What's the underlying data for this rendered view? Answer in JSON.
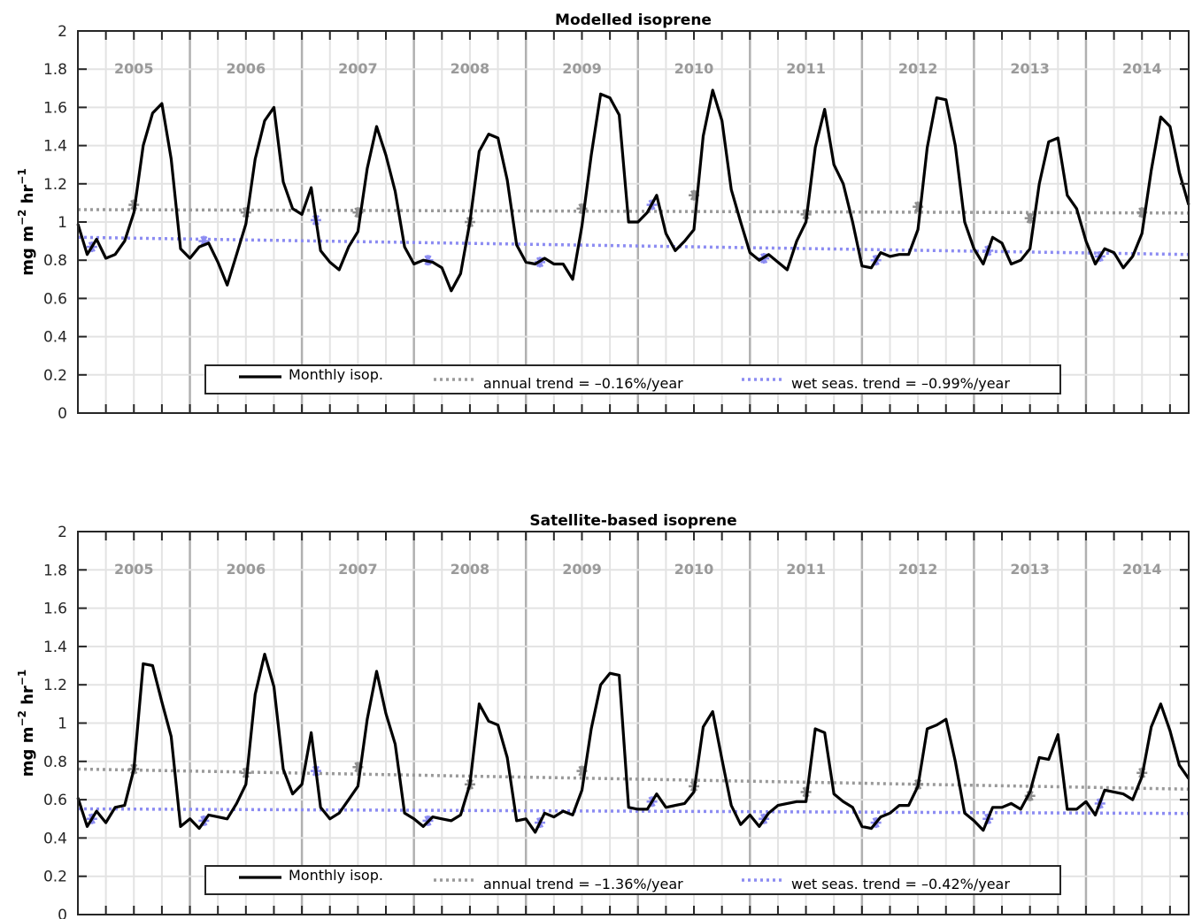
{
  "chart_data": [
    {
      "type": "line",
      "title": "Modelled isoprene",
      "ylabel": "mg m",
      "ylabel_sup1": "−2",
      "ylabel_mid": " hr",
      "ylabel_sup2": "−1",
      "ylim": [
        0,
        2
      ],
      "yticks": [
        "0",
        "0.2",
        "0.4",
        "0.6",
        "0.8",
        "1",
        "1.2",
        "1.4",
        "1.6",
        "1.8",
        "2"
      ],
      "xlim": [
        2005.0,
        2014.917
      ],
      "years": [
        "2005",
        "2006",
        "2007",
        "2008",
        "2009",
        "2010",
        "2011",
        "2012",
        "2013",
        "2014"
      ],
      "grid": true,
      "legend_position": "bottom-center",
      "series": [
        {
          "name": "Monthly isop.",
          "color": "#000000",
          "style": "solid",
          "x": [
            2005.0,
            2005.083,
            2005.167,
            2005.25,
            2005.333,
            2005.417,
            2005.5,
            2005.583,
            2005.667,
            2005.75,
            2005.833,
            2005.917,
            2006.0,
            2006.083,
            2006.167,
            2006.25,
            2006.333,
            2006.417,
            2006.5,
            2006.583,
            2006.667,
            2006.75,
            2006.833,
            2006.917,
            2007.0,
            2007.083,
            2007.167,
            2007.25,
            2007.333,
            2007.417,
            2007.5,
            2007.583,
            2007.667,
            2007.75,
            2007.833,
            2007.917,
            2008.0,
            2008.083,
            2008.167,
            2008.25,
            2008.333,
            2008.417,
            2008.5,
            2008.583,
            2008.667,
            2008.75,
            2008.833,
            2008.917,
            2009.0,
            2009.083,
            2009.167,
            2009.25,
            2009.333,
            2009.417,
            2009.5,
            2009.583,
            2009.667,
            2009.75,
            2009.833,
            2009.917,
            2010.0,
            2010.083,
            2010.167,
            2010.25,
            2010.333,
            2010.417,
            2010.5,
            2010.583,
            2010.667,
            2010.75,
            2010.833,
            2010.917,
            2011.0,
            2011.083,
            2011.167,
            2011.25,
            2011.333,
            2011.417,
            2011.5,
            2011.583,
            2011.667,
            2011.75,
            2011.833,
            2011.917,
            2012.0,
            2012.083,
            2012.167,
            2012.25,
            2012.333,
            2012.417,
            2012.5,
            2012.583,
            2012.667,
            2012.75,
            2012.833,
            2012.917,
            2013.0,
            2013.083,
            2013.167,
            2013.25,
            2013.333,
            2013.417,
            2013.5,
            2013.583,
            2013.667,
            2013.75,
            2013.833,
            2013.917,
            2014.0,
            2014.083,
            2014.167,
            2014.25,
            2014.333,
            2014.417,
            2014.5,
            2014.583,
            2014.667,
            2014.75,
            2014.833,
            2014.917
          ],
          "values": [
            0.99,
            0.83,
            0.91,
            0.81,
            0.83,
            0.9,
            1.05,
            1.4,
            1.57,
            1.62,
            1.33,
            0.86,
            0.81,
            0.87,
            0.89,
            0.79,
            0.67,
            0.83,
            0.99,
            1.33,
            1.53,
            1.6,
            1.21,
            1.07,
            1.04,
            1.18,
            0.85,
            0.79,
            0.75,
            0.87,
            0.95,
            1.28,
            1.5,
            1.35,
            1.16,
            0.87,
            0.78,
            0.8,
            0.79,
            0.76,
            0.64,
            0.73,
            1.0,
            1.37,
            1.46,
            1.44,
            1.22,
            0.88,
            0.79,
            0.78,
            0.81,
            0.78,
            0.78,
            0.7,
            0.98,
            1.35,
            1.67,
            1.65,
            1.56,
            1.0,
            1.0,
            1.05,
            1.14,
            0.94,
            0.85,
            0.9,
            0.96,
            1.45,
            1.69,
            1.53,
            1.17,
            1.0,
            0.84,
            0.8,
            0.83,
            0.79,
            0.75,
            0.9,
            1.0,
            1.39,
            1.59,
            1.3,
            1.2,
            1.0,
            0.77,
            0.76,
            0.84,
            0.82,
            0.83,
            0.83,
            0.96,
            1.39,
            1.65,
            1.64,
            1.4,
            1.0,
            0.86,
            0.78,
            0.92,
            0.89,
            0.78,
            0.8,
            0.86,
            1.2,
            1.42,
            1.44,
            1.14,
            1.07,
            0.9,
            0.78,
            0.86,
            0.84,
            0.76,
            0.82,
            0.94,
            1.27,
            1.55,
            1.5,
            1.26,
            1.09
          ]
        },
        {
          "name": "annual trend = –0.16%/year",
          "color": "#9a9a9a",
          "style": "dotted",
          "x": [
            2005.0,
            2014.917
          ],
          "values": [
            1.065,
            1.047
          ]
        },
        {
          "name": "wet seas. trend = –0.99%/year",
          "color": "#8c8cf2",
          "style": "dotted",
          "x": [
            2005.0,
            2014.917
          ],
          "values": [
            0.92,
            0.83
          ]
        }
      ],
      "annual_markers": {
        "color": "#8f8f8f",
        "x": [
          2005.5,
          2006.5,
          2007.5,
          2008.5,
          2009.5,
          2010.5,
          2011.5,
          2012.5,
          2013.5,
          2014.5
        ],
        "values": [
          1.09,
          1.05,
          1.05,
          1.0,
          1.07,
          1.14,
          1.04,
          1.08,
          1.02,
          1.05
        ]
      },
      "wet_markers": {
        "color": "#8c8cf2",
        "x": [
          2005.125,
          2006.125,
          2007.125,
          2008.125,
          2009.125,
          2010.125,
          2011.125,
          2012.125,
          2013.125,
          2014.125
        ],
        "values": [
          0.87,
          0.9,
          1.01,
          0.8,
          0.79,
          1.09,
          0.81,
          0.8,
          0.85,
          0.82
        ]
      }
    },
    {
      "type": "line",
      "title": "Satellite-based isoprene",
      "ylabel": "mg m",
      "ylabel_sup1": "−2",
      "ylabel_mid": " hr",
      "ylabel_sup2": "−1",
      "ylim": [
        0,
        2
      ],
      "yticks": [
        "0",
        "0.2",
        "0.4",
        "0.6",
        "0.8",
        "1",
        "1.2",
        "1.4",
        "1.6",
        "1.8",
        "2"
      ],
      "xlim": [
        2005.0,
        2014.917
      ],
      "years": [
        "2005",
        "2006",
        "2007",
        "2008",
        "2009",
        "2010",
        "2011",
        "2012",
        "2013",
        "2014"
      ],
      "grid": true,
      "legend_position": "bottom-center",
      "series": [
        {
          "name": "Monthly isop.",
          "color": "#000000",
          "style": "solid",
          "x": [
            2005.0,
            2005.083,
            2005.167,
            2005.25,
            2005.333,
            2005.417,
            2005.5,
            2005.583,
            2005.667,
            2005.75,
            2005.833,
            2005.917,
            2006.0,
            2006.083,
            2006.167,
            2006.25,
            2006.333,
            2006.417,
            2006.5,
            2006.583,
            2006.667,
            2006.75,
            2006.833,
            2006.917,
            2007.0,
            2007.083,
            2007.167,
            2007.25,
            2007.333,
            2007.417,
            2007.5,
            2007.583,
            2007.667,
            2007.75,
            2007.833,
            2007.917,
            2008.0,
            2008.083,
            2008.167,
            2008.25,
            2008.333,
            2008.417,
            2008.5,
            2008.583,
            2008.667,
            2008.75,
            2008.833,
            2008.917,
            2009.0,
            2009.083,
            2009.167,
            2009.25,
            2009.333,
            2009.417,
            2009.5,
            2009.583,
            2009.667,
            2009.75,
            2009.833,
            2009.917,
            2010.0,
            2010.083,
            2010.167,
            2010.25,
            2010.333,
            2010.417,
            2010.5,
            2010.583,
            2010.667,
            2010.75,
            2010.833,
            2010.917,
            2011.0,
            2011.083,
            2011.167,
            2011.25,
            2011.333,
            2011.417,
            2011.5,
            2011.583,
            2011.667,
            2011.75,
            2011.833,
            2011.917,
            2012.0,
            2012.083,
            2012.167,
            2012.25,
            2012.333,
            2012.417,
            2012.5,
            2012.583,
            2012.667,
            2012.75,
            2012.833,
            2012.917,
            2013.0,
            2013.083,
            2013.167,
            2013.25,
            2013.333,
            2013.417,
            2013.5,
            2013.583,
            2013.667,
            2013.75,
            2013.833,
            2013.917,
            2014.0,
            2014.083,
            2014.167,
            2014.25,
            2014.333,
            2014.417,
            2014.5,
            2014.583,
            2014.667,
            2014.75,
            2014.833,
            2014.917
          ],
          "values": [
            0.61,
            0.46,
            0.54,
            0.48,
            0.56,
            0.57,
            0.76,
            1.31,
            1.3,
            1.11,
            0.93,
            0.46,
            0.5,
            0.45,
            0.52,
            0.51,
            0.5,
            0.58,
            0.68,
            1.15,
            1.36,
            1.19,
            0.76,
            0.63,
            0.68,
            0.95,
            0.56,
            0.5,
            0.53,
            0.6,
            0.67,
            1.02,
            1.27,
            1.05,
            0.89,
            0.53,
            0.5,
            0.46,
            0.51,
            0.5,
            0.49,
            0.52,
            0.68,
            1.1,
            1.01,
            0.99,
            0.82,
            0.49,
            0.5,
            0.43,
            0.53,
            0.51,
            0.54,
            0.52,
            0.65,
            0.97,
            1.2,
            1.26,
            1.25,
            0.56,
            0.55,
            0.55,
            0.63,
            0.56,
            0.57,
            0.58,
            0.64,
            0.98,
            1.06,
            0.81,
            0.57,
            0.47,
            0.52,
            0.46,
            0.53,
            0.57,
            0.58,
            0.59,
            0.59,
            0.97,
            0.95,
            0.63,
            0.59,
            0.56,
            0.46,
            0.45,
            0.51,
            0.53,
            0.57,
            0.57,
            0.67,
            0.97,
            0.99,
            1.02,
            0.8,
            0.53,
            0.49,
            0.44,
            0.56,
            0.56,
            0.58,
            0.55,
            0.64,
            0.82,
            0.81,
            0.94,
            0.55,
            0.55,
            0.59,
            0.52,
            0.65,
            0.64,
            0.63,
            0.6,
            0.72,
            0.98,
            1.1,
            0.96,
            0.78,
            0.71
          ]
        },
        {
          "name": "annual trend = –1.36%/year",
          "color": "#9a9a9a",
          "style": "dotted",
          "x": [
            2005.0,
            2014.917
          ],
          "values": [
            0.76,
            0.655
          ]
        },
        {
          "name": "wet seas. trend = –0.42%/year",
          "color": "#8c8cf2",
          "style": "dotted",
          "x": [
            2005.0,
            2014.917
          ],
          "values": [
            0.552,
            0.528
          ]
        }
      ],
      "annual_markers": {
        "color": "#8f8f8f",
        "x": [
          2005.5,
          2006.5,
          2007.5,
          2008.5,
          2009.5,
          2010.5,
          2011.5,
          2012.5,
          2013.5,
          2014.5
        ],
        "values": [
          0.76,
          0.74,
          0.77,
          0.68,
          0.75,
          0.67,
          0.64,
          0.68,
          0.62,
          0.74
        ]
      },
      "wet_markers": {
        "color": "#8c8cf2",
        "x": [
          2005.125,
          2006.125,
          2007.125,
          2008.125,
          2009.125,
          2010.125,
          2011.125,
          2012.125,
          2013.125,
          2014.125
        ],
        "values": [
          0.5,
          0.49,
          0.75,
          0.49,
          0.48,
          0.59,
          0.5,
          0.48,
          0.5,
          0.58
        ]
      }
    }
  ]
}
